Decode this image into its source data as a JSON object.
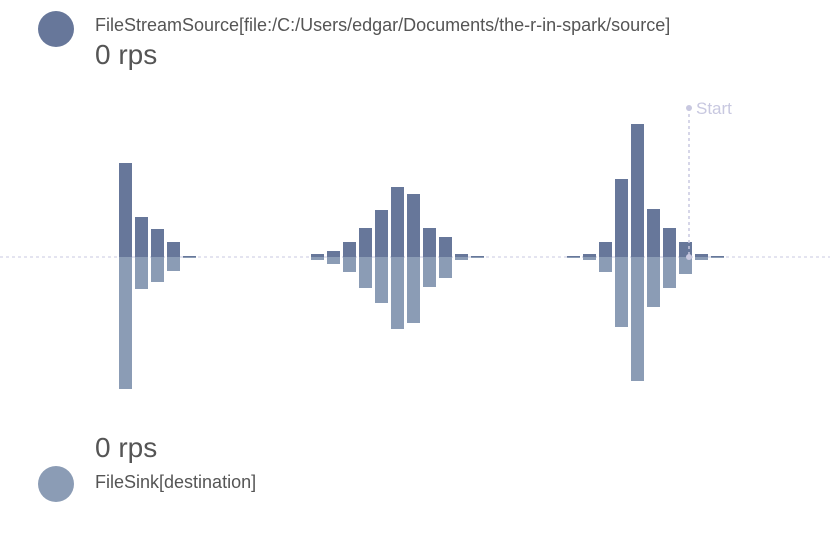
{
  "source": {
    "name": "FileStreamSource[file:/C:/Users/edgar/Documents/the-r-in-spark/source]",
    "rate": "0 rps",
    "color": "#67779a"
  },
  "sink": {
    "name": "FileSink[destination]",
    "rate": "0 rps",
    "color": "#8b9cb5"
  },
  "timeline": {
    "marker_label": "Start",
    "marker_color": "#c8c8e0",
    "baseline_color": "#c8c8e0"
  },
  "chart_data": {
    "type": "bar",
    "title": "",
    "series": [
      {
        "values": [
          0,
          0,
          0,
          0,
          0,
          0,
          0,
          94,
          40,
          28,
          15,
          1,
          0,
          0,
          0,
          0,
          0,
          0,
          0,
          3,
          6,
          15,
          29,
          47,
          70,
          63,
          29,
          20,
          3,
          1,
          0,
          0,
          0,
          0,
          0,
          1,
          3,
          15,
          78,
          133,
          48,
          29,
          15,
          3,
          1
        ]
      },
      {
        "values": [
          0,
          0,
          0,
          0,
          0,
          0,
          0,
          132,
          32,
          25,
          14,
          1,
          0,
          0,
          0,
          0,
          0,
          0,
          0,
          3,
          7,
          15,
          31,
          46,
          72,
          66,
          30,
          21,
          3,
          1,
          0,
          0,
          0,
          0,
          0,
          1,
          3,
          15,
          70,
          124,
          50,
          31,
          17,
          3,
          1
        ]
      }
    ]
  }
}
